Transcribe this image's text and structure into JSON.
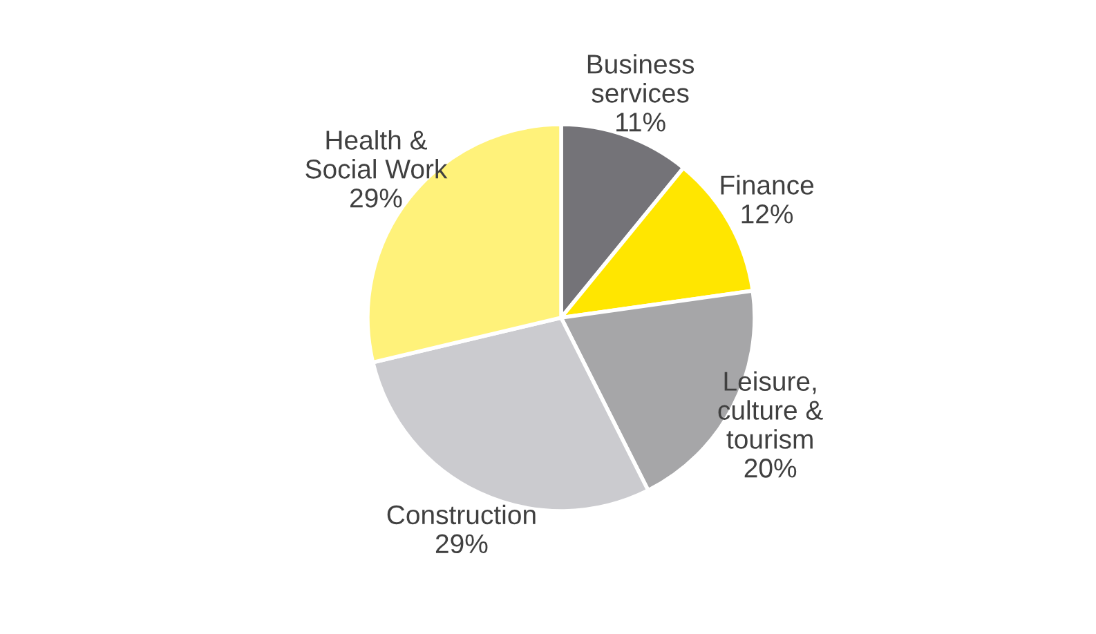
{
  "chart_data": {
    "type": "pie",
    "categories": [
      "Business\nservices",
      "Finance",
      "Leisure,\nculture &\ntourism",
      "Construction",
      "Health &\nSocial Work"
    ],
    "values": [
      11,
      12,
      20,
      29,
      29
    ],
    "value_labels": [
      "11%",
      "12%",
      "20%",
      "29%",
      "29%"
    ],
    "colors": [
      "#747378",
      "#ffe600",
      "#a6a6a8",
      "#cbcbcf",
      "#fff27a"
    ],
    "legend": false
  }
}
